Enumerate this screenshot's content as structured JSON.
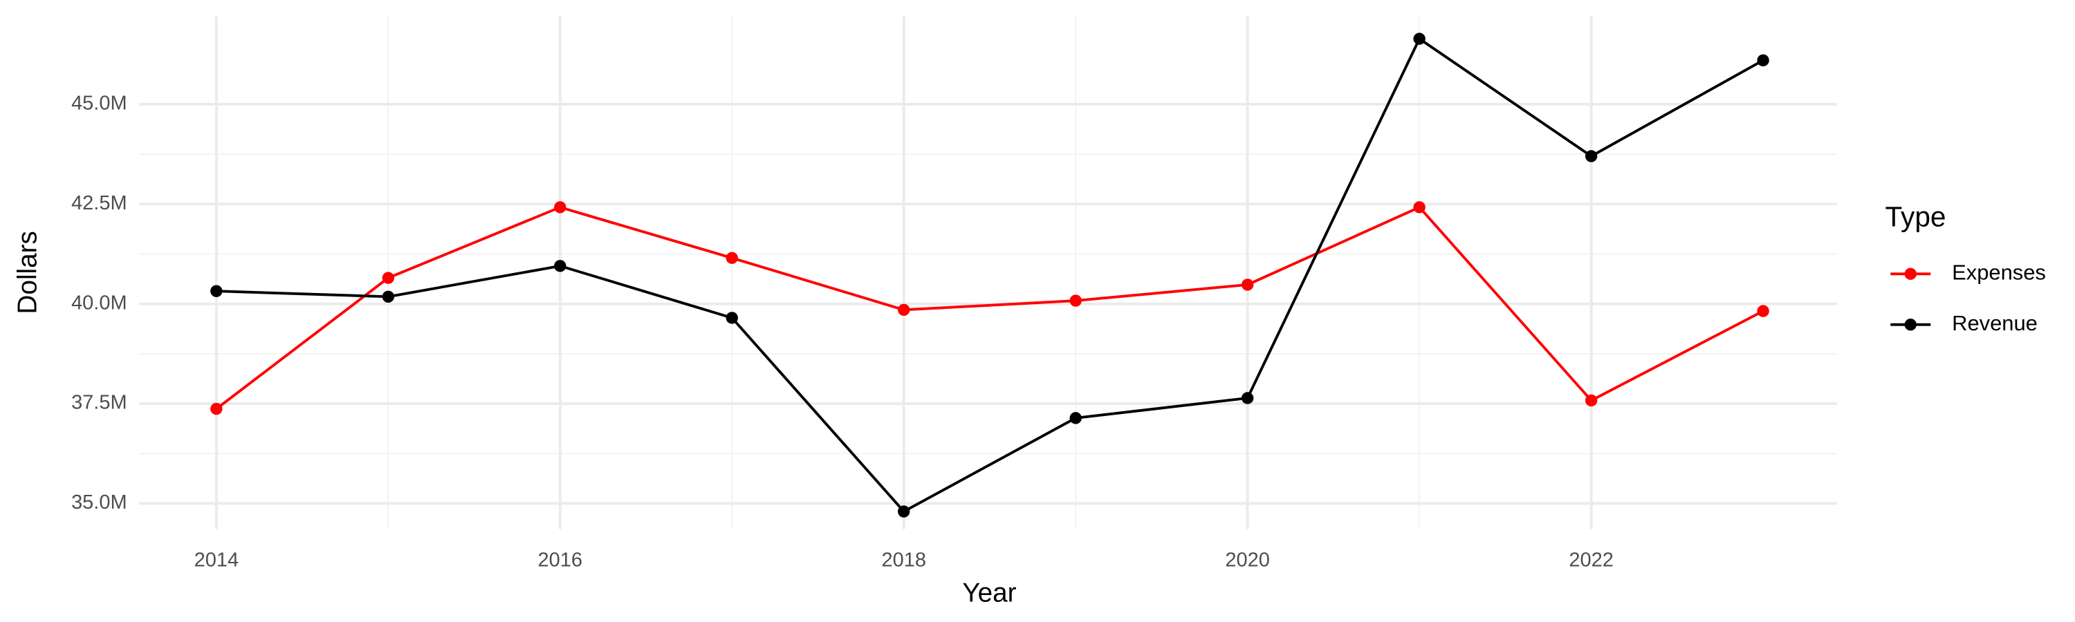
{
  "chart_data": {
    "type": "line",
    "x_label": "Year",
    "y_label": "Dollars",
    "legend_title": "Type",
    "legend_position": "right",
    "x": [
      2014,
      2015,
      2016,
      2017,
      2018,
      2019,
      2020,
      2021,
      2022,
      2023
    ],
    "series": [
      {
        "name": "Expenses",
        "color": "#ff0000",
        "values": [
          37370000,
          40650000,
          42420000,
          41150000,
          39850000,
          40080000,
          40480000,
          42420000,
          37580000,
          39820000
        ]
      },
      {
        "name": "Revenue",
        "color": "#000000",
        "values": [
          40320000,
          40180000,
          40950000,
          39650000,
          34800000,
          37140000,
          37640000,
          46640000,
          43700000,
          46100000
        ]
      }
    ],
    "xlim": [
      2013.55,
      2023.43
    ],
    "xticks": [
      2014,
      2016,
      2018,
      2020,
      2022
    ],
    "ylim": [
      34360000,
      47210000
    ],
    "yticks": [
      {
        "value": 35000000,
        "label": "35.0M"
      },
      {
        "value": 37500000,
        "label": "37.5M"
      },
      {
        "value": 40000000,
        "label": "40.0M"
      },
      {
        "value": 42500000,
        "label": "42.5M"
      },
      {
        "value": 45000000,
        "label": "45.0M"
      }
    ],
    "grid": true
  }
}
